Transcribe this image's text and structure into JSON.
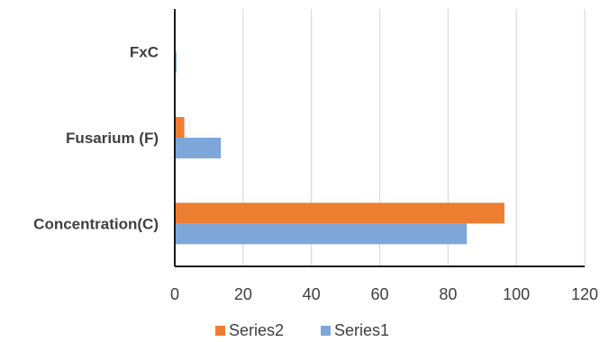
{
  "chart_data": {
    "type": "bar",
    "orientation": "horizontal",
    "categories": [
      "Concentration(C)",
      "Fusarium (F)",
      "FxC"
    ],
    "series": [
      {
        "name": "Series1",
        "values": [
          85.5,
          13.5,
          0.5
        ],
        "color": "#7DA7D9"
      },
      {
        "name": "Series2",
        "values": [
          96.5,
          2.8,
          0.0
        ],
        "color": "#ED7D31"
      }
    ],
    "xlim": [
      0,
      120
    ],
    "x_ticks": [
      0,
      20,
      40,
      60,
      80,
      100,
      120
    ],
    "grid": true,
    "legend_position": "bottom",
    "legend_order": [
      "Series2",
      "Series1"
    ],
    "title": "",
    "xlabel": "",
    "ylabel": ""
  }
}
